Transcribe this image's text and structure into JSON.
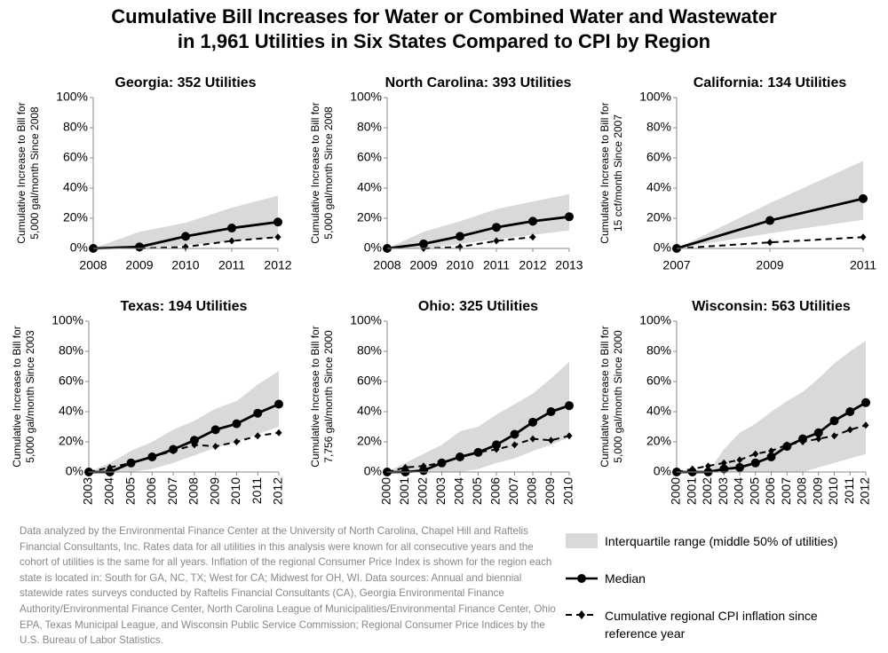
{
  "title": [
    "Cumulative Bill Increases for Water or Combined Water and Wastewater",
    "in 1,961 Utilities in Six States Compared to CPI by Region"
  ],
  "note": "Data analyzed by the Environmental Finance Center at the University of North Carolina, Chapel Hill and Raftelis Financial Consultants, Inc. Rates data for all utilities in this analysis were known for all consecutive years and the cohort of utilities is the same for all years. Inflation of the regional Consumer Price Index is shown for the region each state is located in: South for GA, NC, TX; West for CA; Midwest for OH, WI. Data sources: Annual and biennial statewide rates surveys conducted by Raftelis Financial Consultants (CA), Georgia Environmental Finance Authority/Environmental Finance Center, North Carolina League of Municipalities/Environmental Finance Center, Ohio EPA, Texas Municipal League, and Wisconsin Public Service Commission; Regional Consumer Price Indices by the U.S. Bureau of Labor Statistics.",
  "chart_data": [
    {
      "type": "line",
      "title": "Georgia: 352 Utilities",
      "ylabel": [
        "Cumulative Increase to Bill for",
        "5,000 gal/month Since 2008"
      ],
      "x": [
        2008,
        2009,
        2010,
        2011,
        2012
      ],
      "xlim": [
        2008,
        2012
      ],
      "xticks": [
        2008,
        2009,
        2010,
        2011,
        2012
      ],
      "xtick_rotate": false,
      "ylim": [
        0,
        100
      ],
      "yticks": [
        {
          "value": 0,
          "label": "0%"
        },
        {
          "value": 20,
          "label": "20%"
        },
        {
          "value": 40,
          "label": "40%"
        },
        {
          "value": 60,
          "label": "60%"
        },
        {
          "value": 80,
          "label": "80%"
        },
        {
          "value": 100,
          "label": "100%"
        }
      ],
      "series": [
        {
          "name": "Interquartile range (middle 50% of utilities)",
          "color": "#d9d9d9",
          "low": [
            0,
            0,
            2,
            5,
            7
          ],
          "high": [
            0,
            11,
            17,
            27,
            35
          ]
        },
        {
          "name": "Median",
          "color": "#000000",
          "line_style": "solid",
          "marker": "circle",
          "values": [
            0,
            1,
            8,
            13.5,
            17.5
          ]
        },
        {
          "name": "Cumulative regional CPI inflation since reference year",
          "color": "#000000",
          "line_style": "dashed",
          "marker": "diamond",
          "values": [
            null,
            0,
            1,
            5,
            7.5
          ]
        }
      ]
    },
    {
      "type": "line",
      "title": "North Carolina: 393 Utilities",
      "ylabel": [
        "Cumulative Increase to Bill for",
        "5,000 gal/month Since 2008"
      ],
      "x": [
        2008,
        2009,
        2010,
        2011,
        2012,
        2013
      ],
      "xlim": [
        2008,
        2013
      ],
      "xticks": [
        2008,
        2009,
        2010,
        2011,
        2012,
        2013
      ],
      "xtick_rotate": false,
      "ylim": [
        0,
        100
      ],
      "yticks": [
        {
          "value": 0,
          "label": "0%"
        },
        {
          "value": 20,
          "label": "20%"
        },
        {
          "value": 40,
          "label": "40%"
        },
        {
          "value": 60,
          "label": "60%"
        },
        {
          "value": 80,
          "label": "80%"
        },
        {
          "value": 100,
          "label": "100%"
        }
      ],
      "series": [
        {
          "name": "Interquartile range (middle 50% of utilities)",
          "color": "#d9d9d9",
          "low": [
            0,
            0,
            3,
            6,
            9,
            12
          ],
          "high": [
            0,
            11,
            18,
            26,
            31,
            36
          ]
        },
        {
          "name": "Median",
          "color": "#000000",
          "line_style": "solid",
          "marker": "circle",
          "values": [
            0,
            3,
            8,
            14,
            18,
            21
          ]
        },
        {
          "name": "Cumulative regional CPI inflation since reference year",
          "color": "#000000",
          "line_style": "dashed",
          "marker": "diamond",
          "values": [
            null,
            0,
            1,
            5,
            7.5,
            null
          ]
        }
      ]
    },
    {
      "type": "line",
      "title": "California: 134 Utilities",
      "ylabel": [
        "Cumulative Increase to Bill for",
        "15 ccf/month Since 2007"
      ],
      "x": [
        2007,
        2009,
        2011
      ],
      "xlim": [
        2007,
        2011
      ],
      "xticks": [
        2007,
        2009,
        2011
      ],
      "xtick_rotate": false,
      "ylim": [
        0,
        100
      ],
      "yticks": [
        {
          "value": 0,
          "label": "0%"
        },
        {
          "value": 20,
          "label": "20%"
        },
        {
          "value": 40,
          "label": "40%"
        },
        {
          "value": 60,
          "label": "60%"
        },
        {
          "value": 80,
          "label": "80%"
        },
        {
          "value": 100,
          "label": "100%"
        }
      ],
      "series": [
        {
          "name": "Interquartile range (middle 50% of utilities)",
          "color": "#d9d9d9",
          "low": [
            0,
            10,
            19
          ],
          "high": [
            0,
            30,
            58
          ]
        },
        {
          "name": "Median",
          "color": "#000000",
          "line_style": "solid",
          "marker": "circle",
          "values": [
            0,
            18.5,
            33
          ]
        },
        {
          "name": "Cumulative regional CPI inflation since reference year",
          "color": "#000000",
          "line_style": "dashed",
          "marker": "diamond",
          "values": [
            0,
            4,
            7.5
          ]
        }
      ]
    },
    {
      "type": "line",
      "title": "Texas: 194 Utilities",
      "ylabel": [
        "Cumulative Increase to Bill for",
        "5,000 gal/month Since 2003"
      ],
      "x": [
        2003,
        2004,
        2005,
        2006,
        2007,
        2008,
        2009,
        2010,
        2011,
        2012
      ],
      "xlim": [
        2003,
        2012
      ],
      "xticks": [
        2003,
        2004,
        2005,
        2006,
        2007,
        2008,
        2009,
        2010,
        2011,
        2012
      ],
      "xtick_rotate": true,
      "ylim": [
        0,
        100
      ],
      "yticks": [
        {
          "value": 0,
          "label": "0%"
        },
        {
          "value": 20,
          "label": "20%"
        },
        {
          "value": 40,
          "label": "40%"
        },
        {
          "value": 60,
          "label": "60%"
        },
        {
          "value": 80,
          "label": "80%"
        },
        {
          "value": 100,
          "label": "100%"
        }
      ],
      "series": [
        {
          "name": "Interquartile range (middle 50% of utilities)",
          "color": "#d9d9d9",
          "low": [
            0,
            0,
            0,
            2,
            6,
            11,
            16,
            20,
            25,
            30
          ],
          "high": [
            0,
            6,
            14,
            20,
            28,
            34,
            42,
            47,
            58,
            67
          ]
        },
        {
          "name": "Median",
          "color": "#000000",
          "line_style": "solid",
          "marker": "circle",
          "values": [
            0,
            0,
            6,
            10,
            15,
            21,
            28,
            32,
            39,
            45
          ]
        },
        {
          "name": "Cumulative regional CPI inflation since reference year",
          "color": "#000000",
          "line_style": "dashed",
          "marker": "diamond",
          "values": [
            0,
            3,
            6,
            10,
            14,
            18,
            17,
            20,
            24,
            26
          ]
        }
      ]
    },
    {
      "type": "line",
      "title": "Ohio: 325 Utilities",
      "ylabel": [
        "Cumulative Increase to Bill for",
        "7,756 gal/month Since 2000"
      ],
      "x": [
        2000,
        2001,
        2002,
        2003,
        2004,
        2005,
        2006,
        2007,
        2008,
        2009,
        2010
      ],
      "xlim": [
        2000,
        2010
      ],
      "xticks": [
        2000,
        2001,
        2002,
        2003,
        2004,
        2005,
        2006,
        2007,
        2008,
        2009,
        2010
      ],
      "xtick_rotate": true,
      "ylim": [
        0,
        100
      ],
      "yticks": [
        {
          "value": 0,
          "label": "0%"
        },
        {
          "value": 20,
          "label": "20%"
        },
        {
          "value": 40,
          "label": "40%"
        },
        {
          "value": 60,
          "label": "60%"
        },
        {
          "value": 80,
          "label": "80%"
        },
        {
          "value": 100,
          "label": "100%"
        }
      ],
      "series": [
        {
          "name": "Interquartile range (middle 50% of utilities)",
          "color": "#d9d9d9",
          "low": [
            0,
            0,
            0,
            0,
            0,
            2,
            6,
            9,
            14,
            18,
            23
          ],
          "high": [
            0,
            6,
            12,
            18,
            27,
            30,
            38,
            45,
            52,
            62,
            73
          ]
        },
        {
          "name": "Median",
          "color": "#000000",
          "line_style": "solid",
          "marker": "circle",
          "values": [
            0,
            0,
            1,
            6,
            10,
            13,
            18,
            25,
            33,
            40,
            44
          ]
        },
        {
          "name": "Cumulative regional CPI inflation since reference year",
          "color": "#000000",
          "line_style": "dashed",
          "marker": "diamond",
          "values": [
            0,
            3,
            4,
            6,
            10,
            13,
            15,
            18,
            22,
            21,
            24
          ]
        }
      ]
    },
    {
      "type": "line",
      "title": "Wisconsin: 563 Utilities",
      "ylabel": [
        "Cumulative Increase to Bill for",
        "5,000 gal/month Since 2000"
      ],
      "x": [
        2000,
        2001,
        2002,
        2003,
        2004,
        2005,
        2006,
        2007,
        2008,
        2009,
        2010,
        2011,
        2012
      ],
      "xlim": [
        2000,
        2012
      ],
      "xticks": [
        2000,
        2001,
        2002,
        2003,
        2004,
        2005,
        2006,
        2007,
        2008,
        2009,
        2010,
        2011,
        2012
      ],
      "xtick_rotate": true,
      "ylim": [
        0,
        100
      ],
      "yticks": [
        {
          "value": 0,
          "label": "0%"
        },
        {
          "value": 20,
          "label": "20%"
        },
        {
          "value": 40,
          "label": "40%"
        },
        {
          "value": 60,
          "label": "60%"
        },
        {
          "value": 80,
          "label": "80%"
        },
        {
          "value": 100,
          "label": "100%"
        }
      ],
      "series": [
        {
          "name": "Interquartile range (middle 50% of utilities)",
          "color": "#d9d9d9",
          "low": [
            0,
            0,
            0,
            0,
            0,
            0,
            0,
            0,
            0,
            3,
            6,
            9,
            12
          ],
          "high": [
            0,
            0,
            0,
            15,
            26,
            32,
            40,
            47,
            53,
            62,
            72,
            80,
            87
          ]
        },
        {
          "name": "Median",
          "color": "#000000",
          "line_style": "solid",
          "marker": "circle",
          "values": [
            0,
            0,
            0,
            2,
            3,
            6,
            10,
            17,
            22,
            26,
            34,
            40,
            46
          ]
        },
        {
          "name": "Cumulative regional CPI inflation since reference year",
          "color": "#000000",
          "line_style": "dashed",
          "marker": "diamond",
          "values": [
            0,
            2,
            4,
            6,
            8,
            12,
            14,
            18,
            20,
            22,
            24,
            28,
            31
          ]
        }
      ]
    }
  ]
}
